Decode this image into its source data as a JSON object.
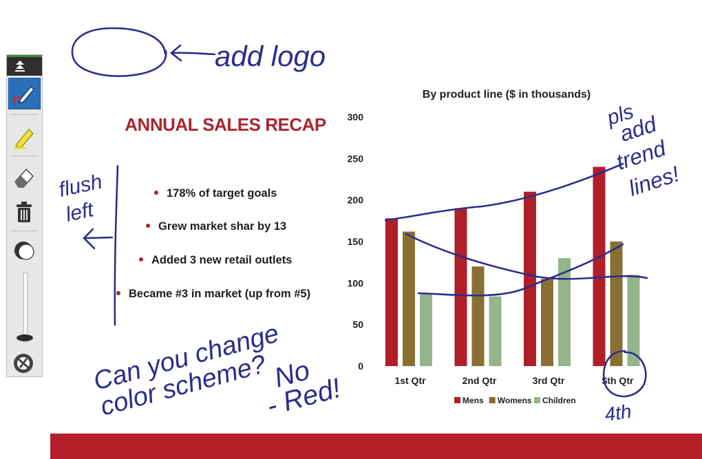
{
  "slide": {
    "title": "ANNUAL SALES RECAP",
    "bullets": [
      "178% of target goals",
      "Grew market shar  by 13",
      "Added 3 new retail outlets",
      "Became #3 in market (up from #5)"
    ],
    "accent_color": "#a8262f",
    "footer_color": "#b41f2a"
  },
  "toolbar": {
    "tools": [
      "collapse-icon",
      "pen-icon",
      "highlighter-icon",
      "eraser-icon",
      "trash-icon",
      "opacity-icon",
      "size-slider",
      "color-wheel-icon"
    ],
    "active_tool": "pen-icon"
  },
  "handwritten_notes": {
    "logo": "add logo",
    "flush_1": "flush",
    "flush_2": "left",
    "trend_1": "pls",
    "trend_2": "add",
    "trend_3": "trend",
    "trend_4": "lines!",
    "color_1": "Can you change",
    "color_2": "color scheme?",
    "color_3": "No",
    "color_4": "- Red!",
    "qtr_fix": "4th",
    "ink_color": "#2b2d8c"
  },
  "chart_data": {
    "type": "bar",
    "title": "By product line ($ in thousands)",
    "categories": [
      "1st Qtr",
      "2nd Qtr",
      "3rd Qtr",
      "$th Qtr"
    ],
    "series": [
      {
        "name": "Mens",
        "values": [
          178,
          190,
          210,
          240
        ],
        "color": "#b01e28"
      },
      {
        "name": "Womens",
        "values": [
          162,
          120,
          105,
          150
        ],
        "color": "#8a6f33"
      },
      {
        "name": "Children",
        "values": [
          88,
          84,
          130,
          110
        ],
        "color": "#94b48c"
      }
    ],
    "ylim": [
      0,
      300
    ],
    "yticks": [
      "0",
      "50",
      "100",
      "150",
      "200",
      "250",
      "300"
    ],
    "legend_position": "bottom",
    "grid": false
  }
}
